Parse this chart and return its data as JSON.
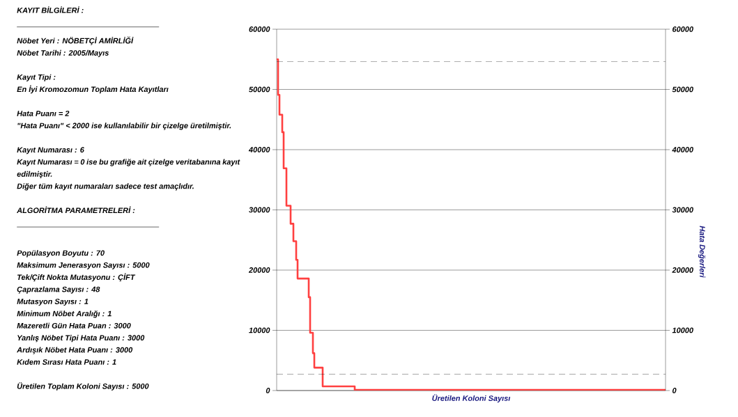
{
  "chart_data": {
    "type": "step",
    "xlabel": "Üretilen Koloni Sayısı",
    "y2label": "Hata Değerleri",
    "annotations": [
      "KAYIT BİLGİLERİ :",
      "Nöbet Yeri : NÖBETÇİ AMİRLİĞİ",
      "Nöbet Tarihi : 2005/Mayıs",
      "Kayıt Tipi :",
      "En İyi Kromozomun Toplam Hata Kayıtları",
      "Hata Puanı = 2",
      "\"Hata Puanı\" < 2000 ise kullanılabilir bir çizelge üretilmiştir.",
      "Kayıt Numarası : 6",
      "Kayıt Numarası = 0 ise bu grafiğe ait çizelge veritabanına kayıt edilmiştir.",
      "Diğer tüm kayıt numaraları sadece test amaçlıdır.",
      "ALGORİTMA PARAMETRELERİ :",
      "Popülasyon Boyutu : 70",
      "Maksimum Jenerasyon Sayısı : 5000",
      "Tek/Çift Nokta Mutasyonu : ÇİFT",
      "Çaprazlama Sayısı : 48",
      "Mutasyon Sayısı : 1",
      "Minimum Nöbet Aralığı : 1",
      "Mazeretli Gün Hata Puan : 3000",
      "Yanlış Nöbet Tipi Hata Puanı : 3000",
      "Ardışık Nöbet Hata Puanı : 3000",
      "Kıdem Sırası Hata Puanı : 1",
      "Üretilen Toplam Koloni Sayısı : 5000"
    ],
    "categories": [
      null,
      null,
      null,
      null,
      null,
      null,
      null,
      null,
      null,
      null,
      null,
      null,
      null,
      null,
      null,
      null,
      null,
      null,
      null,
      null,
      null,
      null,
      null,
      null,
      null,
      null,
      null,
      null,
      null,
      null,
      null,
      null,
      null,
      null,
      null,
      null,
      null,
      null,
      null,
      null,
      null,
      null,
      null,
      null,
      null,
      null,
      null,
      null,
      null,
      null,
      null,
      null,
      null,
      null,
      null,
      null,
      null,
      null,
      null,
      null,
      null,
      null,
      null,
      null,
      null,
      null,
      null,
      null,
      null,
      null,
      null,
      null,
      null,
      null,
      null,
      null,
      null,
      null,
      null,
      null,
      null,
      null,
      null,
      null,
      null,
      null,
      null,
      null,
      null,
      null,
      null,
      null,
      null,
      null,
      null,
      null,
      null,
      null,
      null,
      null,
      null,
      null,
      null,
      null,
      null,
      null,
      null,
      null,
      null,
      null,
      null,
      null,
      null,
      null,
      null,
      null,
      null,
      null,
      null,
      null,
      null,
      null,
      null,
      null,
      null,
      null,
      null,
      null,
      null,
      null,
      null,
      null,
      null,
      null,
      null,
      null,
      null,
      null,
      null,
      null,
      null,
      null,
      null,
      null,
      null,
      null,
      null,
      null,
      null,
      null,
      null,
      null,
      null,
      null,
      null,
      null,
      null,
      null,
      null,
      null,
      null,
      null,
      null,
      null,
      null,
      null,
      null,
      null,
      null,
      null,
      null,
      null,
      null,
      null,
      null,
      null,
      null,
      null,
      null,
      null,
      null,
      null,
      null,
      null,
      null,
      null,
      null,
      null,
      null,
      null,
      null,
      null,
      null,
      null,
      null,
      null,
      null,
      null,
      null,
      null,
      null,
      null,
      null,
      null,
      null,
      null,
      null,
      null,
      null,
      null,
      null,
      null,
      null,
      null,
      null,
      null,
      null,
      null,
      null,
      null,
      null,
      null,
      null,
      null,
      null,
      null,
      null,
      null,
      null,
      null,
      null,
      null,
      null,
      null,
      null,
      null,
      null,
      null,
      null,
      null,
      null,
      null,
      null,
      null,
      null,
      null,
      null,
      null,
      null,
      null,
      null,
      null,
      null,
      null,
      null,
      null,
      null,
      null,
      null,
      null,
      null,
      null,
      null,
      null,
      null,
      null,
      null,
      null,
      null,
      null,
      null,
      null,
      null,
      null,
      null,
      null,
      null,
      null,
      null,
      null
    ],
    "values": [
      55000,
      49100,
      45800,
      45800,
      42900,
      36900,
      36900,
      30700,
      30700,
      30700,
      27700,
      27700,
      24800,
      24800,
      21700,
      18600,
      18600,
      18600,
      18600,
      18600,
      18600,
      18600,
      18600,
      15500,
      9600,
      9600,
      6200,
      3800,
      3800,
      3800,
      3800,
      3800,
      3800,
      700,
      700,
      700,
      700,
      700,
      700,
      700,
      700,
      700,
      700,
      700,
      700,
      700,
      700,
      700,
      700,
      700,
      700,
      700,
      700,
      700,
      700,
      700,
      100,
      100,
      100,
      100,
      100,
      100,
      100,
      100,
      100,
      100,
      100,
      100,
      100,
      100,
      100,
      100,
      100,
      100,
      100,
      100,
      100,
      100,
      100,
      100,
      100,
      100,
      100,
      100,
      100,
      100,
      100,
      100,
      100,
      100,
      100,
      100,
      100,
      100,
      100,
      100,
      100,
      100,
      100,
      100,
      100,
      100,
      100,
      100,
      100,
      100,
      100,
      100,
      100,
      100,
      100,
      100,
      100,
      100,
      100,
      100,
      100,
      100,
      100,
      100,
      100,
      100,
      100,
      100,
      100,
      100,
      100,
      100,
      100,
      100,
      100,
      100,
      100,
      100,
      100,
      100,
      100,
      100,
      100,
      100,
      100,
      100,
      100,
      100,
      100,
      100,
      100,
      100,
      100,
      100,
      100,
      100,
      100,
      100,
      100,
      100,
      100,
      100,
      100,
      100,
      100,
      100,
      100,
      100,
      100,
      100,
      100,
      100,
      100,
      100,
      100,
      100,
      100,
      100,
      100,
      100,
      100,
      100,
      100,
      100,
      100,
      100,
      100,
      100,
      100,
      100,
      100,
      100,
      100,
      100,
      100,
      100,
      100,
      100,
      100,
      100,
      100,
      100,
      100,
      100,
      100,
      100,
      100,
      100,
      100,
      100,
      100,
      100,
      100,
      100,
      100,
      100,
      100,
      100,
      100,
      100,
      100,
      100,
      100,
      100,
      100,
      100,
      100,
      100,
      100,
      100,
      100,
      100,
      100,
      100,
      100,
      100,
      100,
      100,
      100,
      100,
      100,
      100,
      100,
      100,
      100,
      100,
      100,
      100,
      100,
      100,
      100,
      100,
      100,
      100,
      100,
      100,
      100,
      100,
      100,
      100,
      100,
      100,
      100,
      100,
      100,
      100,
      100,
      100,
      100,
      100,
      100,
      100,
      100,
      100,
      100,
      100,
      100,
      100,
      100,
      100,
      100,
      100,
      100,
      100
    ],
    "color": "#ff4040",
    "ylim": [
      0,
      60000
    ],
    "yticks": [
      0,
      10000,
      20000,
      30000,
      40000,
      50000,
      60000
    ],
    "y2lim": [
      0,
      60000
    ],
    "y2ticks": [
      0,
      10000,
      20000,
      30000,
      40000,
      50000,
      60000
    ],
    "grid": "y",
    "tick_labels": "y",
    "marker": "none",
    "line_style": "solid",
    "ref_lines": [
      {
        "axis": "y",
        "value": 54600,
        "color": "#000000",
        "line_style": "dashed"
      },
      {
        "axis": "y",
        "value": 2700,
        "color": "#000000",
        "line_style": "dashed"
      }
    ]
  }
}
